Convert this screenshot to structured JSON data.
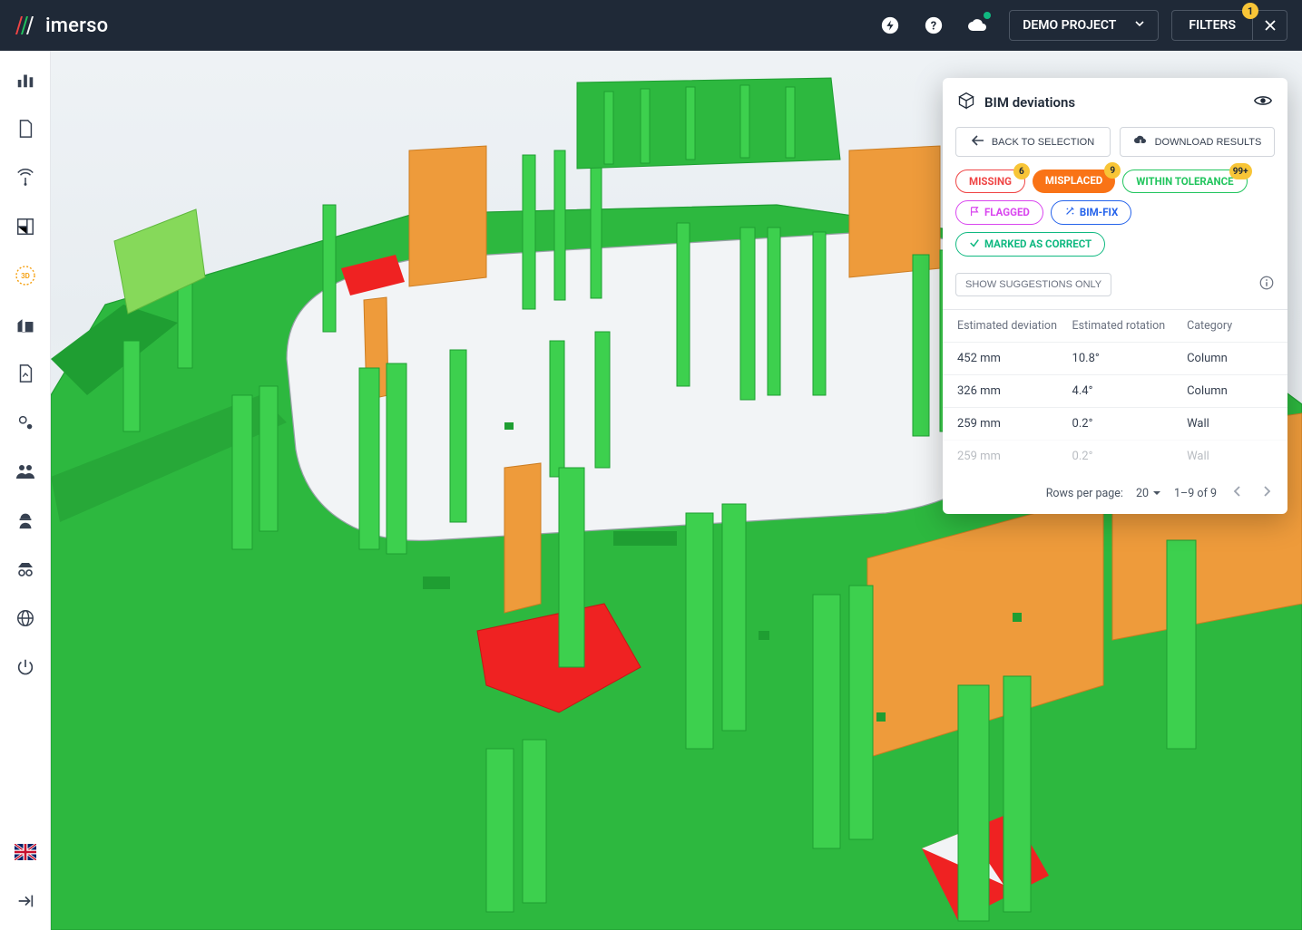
{
  "brand": {
    "name": "imerso"
  },
  "topbar": {
    "project_label": "DEMO PROJECT",
    "filters_label": "FILTERS",
    "filter_badge": "1"
  },
  "colors": {
    "topbar_bg": "#1f2937",
    "accent_yellow": "#f8c537",
    "green": "#22c55e",
    "dark_green": "#15803d",
    "orange": "#f97316",
    "red": "#ef4444",
    "teal": "#10b981",
    "blue": "#2563eb",
    "magenta": "#d946ef"
  },
  "panel": {
    "title": "BIM deviations",
    "back_label": "BACK TO SELECTION",
    "download_label": "DOWNLOAD RESULTS",
    "chips": [
      {
        "label": "MISSING",
        "count": "6",
        "style": "outline",
        "color": "#ef4444"
      },
      {
        "label": "MISPLACED",
        "count": "9",
        "style": "solid",
        "color": "#f97316"
      },
      {
        "label": "WITHIN TOLERANCE",
        "count": "99+",
        "style": "outline",
        "color": "#22c55e"
      },
      {
        "label": "FLAGGED",
        "icon": "flag",
        "style": "outline",
        "color": "#d946ef"
      },
      {
        "label": "BIM-FIX",
        "icon": "wand",
        "style": "outline",
        "color": "#2563eb"
      },
      {
        "label": "MARKED AS CORRECT",
        "icon": "check",
        "style": "outline",
        "color": "#10b981"
      }
    ],
    "suggest_label": "SHOW SUGGESTIONS ONLY",
    "columns": [
      "Estimated deviation",
      "Estimated rotation",
      "Category"
    ],
    "rows": [
      {
        "dev": "452 mm",
        "rot": "10.8°",
        "cat": "Column"
      },
      {
        "dev": "326 mm",
        "rot": "4.4°",
        "cat": "Column"
      },
      {
        "dev": "259 mm",
        "rot": "0.2°",
        "cat": "Wall"
      },
      {
        "dev": "259 mm",
        "rot": "0.2°",
        "cat": "Wall",
        "faded": true
      }
    ],
    "pager": {
      "rows_label": "Rows per page:",
      "rows_value": "20",
      "range": "1–9 of 9"
    }
  },
  "viewport": {
    "background_gradient": [
      "#eef2f5",
      "#f5f6f7"
    ],
    "floor_color": "#2db83f",
    "floor_dark": "#1f9e32",
    "column_color": "#3dd04e",
    "orange_wall": "#ee9b3b",
    "red_area": "#ef2222",
    "wire_color": "#a0a6ad"
  }
}
